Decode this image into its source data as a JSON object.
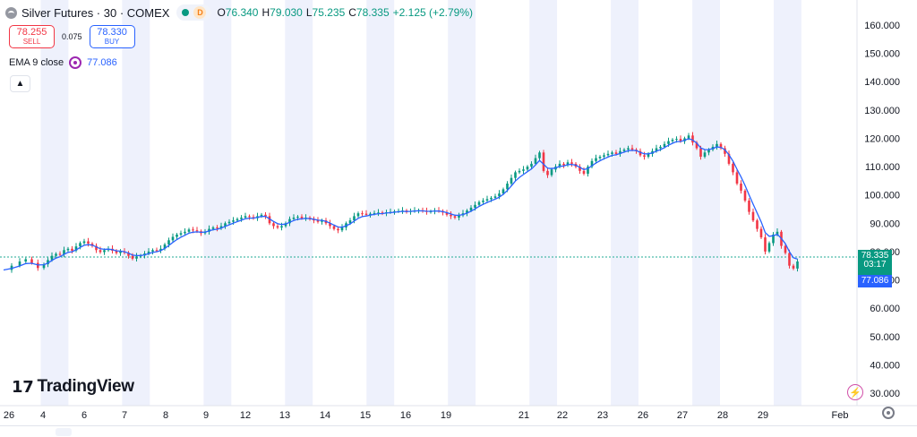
{
  "header": {
    "title": "Silver Futures · 30 · COMEX",
    "delay_badge": "D",
    "ohlc": [
      {
        "k": "O",
        "v": "76.340"
      },
      {
        "k": "H",
        "v": "79.030"
      },
      {
        "k": "L",
        "v": "75.235"
      },
      {
        "k": "C",
        "v": "78.335"
      }
    ],
    "change": "+2.125 (+2.79%)"
  },
  "trade": {
    "sell_price": "78.255",
    "sell_label": "SELL",
    "spread": "0.075",
    "buy_price": "78.330",
    "buy_label": "BUY"
  },
  "indicator": {
    "name": "EMA 9 close",
    "value": "77.086"
  },
  "branding": {
    "logo_text": "TradingView"
  },
  "price_tags": {
    "last": "78.335",
    "countdown": "03:17",
    "ema": "77.086"
  },
  "colors": {
    "up": "#089981",
    "down": "#f23645",
    "ema": "#2962ff",
    "session_band": "#eef1fc"
  },
  "icons": {
    "collapse": "chevron-up-icon",
    "settings": "gear-icon",
    "alert": "lightning-icon"
  },
  "chart_data": {
    "type": "line",
    "title": "Silver Futures · 30 · COMEX",
    "xlabel": "",
    "ylabel": "",
    "ylim": [
      30,
      160
    ],
    "yticks": [
      "160.000",
      "150.000",
      "140.000",
      "130.000",
      "120.000",
      "110.000",
      "100.000",
      "90.000",
      "80.000",
      "70.000",
      "60.000",
      "50.000",
      "40.000",
      "30.000"
    ],
    "x_tick_labels": [
      "26",
      "4",
      "6",
      "7",
      "8",
      "9",
      "12",
      "13",
      "14",
      "15",
      "16",
      "19",
      "21",
      "22",
      "23",
      "26",
      "27",
      "28",
      "29",
      "Feb"
    ],
    "series": [
      {
        "name": "",
        "x": [
          0,
          2,
          4,
          5.5,
          7,
          8.5,
          10,
          11,
          12,
          13,
          14,
          15,
          16,
          17,
          18,
          19,
          20,
          21,
          22,
          23,
          24,
          25,
          26,
          27,
          28,
          29,
          30,
          31,
          32,
          33,
          34,
          35,
          36,
          37,
          38,
          39,
          40,
          41,
          42,
          43,
          44,
          45,
          46,
          47,
          48,
          49,
          50,
          51,
          52,
          53,
          54,
          55,
          56,
          57,
          58,
          59,
          60,
          61,
          62,
          63,
          64,
          65,
          66,
          67,
          68,
          69,
          70,
          71,
          72,
          73,
          74,
          75,
          76,
          77,
          78,
          79,
          80,
          81,
          82,
          83,
          84,
          85,
          86,
          87,
          88,
          89,
          90,
          91,
          92,
          93,
          94,
          95,
          96,
          97,
          98,
          99,
          100,
          101,
          102,
          103,
          104,
          105,
          106,
          107,
          108,
          109,
          110,
          111,
          112,
          113,
          114,
          115,
          116,
          117,
          118,
          119,
          120,
          121,
          122,
          123,
          124,
          125,
          126,
          127,
          128,
          129,
          130,
          131,
          132,
          133,
          134,
          135,
          136,
          137,
          138,
          139,
          140,
          141,
          142,
          143,
          144,
          145,
          146,
          147,
          148,
          149,
          150,
          151,
          152,
          153,
          154,
          155,
          156,
          157,
          158,
          159,
          160,
          161,
          162,
          163,
          164,
          165,
          166,
          167,
          168,
          169,
          170,
          171,
          172,
          173,
          174,
          175,
          176,
          177,
          178,
          179,
          180,
          181,
          182,
          183,
          184,
          185,
          186,
          187,
          188,
          189,
          190,
          191,
          192,
          193,
          194,
          195,
          196,
          197,
          198,
          199,
          200,
          201,
          202,
          203,
          204,
          205,
          206,
          207,
          208,
          209,
          210
        ],
        "values": [
          73.5,
          75.0,
          76.5,
          77.3,
          76.0,
          74.2,
          75.5,
          77.0,
          78.5,
          79.2,
          79.0,
          80.5,
          81.0,
          80.3,
          81.8,
          83.0,
          83.6,
          82.8,
          82.0,
          80.5,
          79.8,
          80.5,
          81.0,
          80.3,
          79.5,
          80.0,
          79.6,
          78.5,
          77.5,
          78.3,
          78.6,
          79.3,
          80.0,
          80.5,
          80.4,
          81.0,
          82.5,
          84.0,
          85.2,
          86.0,
          86.5,
          87.0,
          87.8,
          87.5,
          87.2,
          86.5,
          87.0,
          88.0,
          88.5,
          88.2,
          89.0,
          90.0,
          90.5,
          91.0,
          91.5,
          92.0,
          92.5,
          92.2,
          91.8,
          92.5,
          93.0,
          92.5,
          90.0,
          89.0,
          88.5,
          89.0,
          90.0,
          91.5,
          92.0,
          92.3,
          91.8,
          92.0,
          91.5,
          91.0,
          90.5,
          91.0,
          90.0,
          89.0,
          88.0,
          87.5,
          88.5,
          90.0,
          91.0,
          92.5,
          93.5,
          93.4,
          93.0,
          93.4,
          93.6,
          93.8,
          93.5,
          93.9,
          94.0,
          94.2,
          94.3,
          94.5,
          94.0,
          94.3,
          94.5,
          94.6,
          94.3,
          94.0,
          94.2,
          94.5,
          94.3,
          93.8,
          93.0,
          92.5,
          92.0,
          92.8,
          93.5,
          94.5,
          95.5,
          96.5,
          97.5,
          98.0,
          98.5,
          99.0,
          99.5,
          100.5,
          102.0,
          104.0,
          106.0,
          108.0,
          108.5,
          109.0,
          110.0,
          111.0,
          113.0,
          115.0,
          108.5,
          107.0,
          109.0,
          110.0,
          111.0,
          110.5,
          111.5,
          111.0,
          110.0,
          108.5,
          107.5,
          110.0,
          112.0,
          113.0,
          113.5,
          114.0,
          114.5,
          115.0,
          114.5,
          115.5,
          116.0,
          116.5,
          116.0,
          115.5,
          114.0,
          113.5,
          114.5,
          115.5,
          116.5,
          117.0,
          118.0,
          119.0,
          119.5,
          119.8,
          119.0,
          120.0,
          121.0,
          118.5,
          116.5,
          113.5,
          115.0,
          116.0,
          117.0,
          118.0,
          116.5,
          114.5,
          111.0,
          108.0,
          104.0,
          101.5,
          98.0,
          94.0,
          91.0,
          88.0,
          85.0,
          80.0,
          83.0,
          86.0,
          87.0,
          82.0,
          79.5,
          75.0,
          74.0,
          76.5,
          78.3,
          78.3,
          78.3,
          78.3,
          78.3,
          78.3,
          78.3,
          78.3,
          78.3,
          78.3,
          78.3,
          78.3,
          78.3
        ]
      }
    ],
    "last_price": 78.335,
    "ema_value": 77.086,
    "grid": false,
    "legend": "top-left"
  }
}
